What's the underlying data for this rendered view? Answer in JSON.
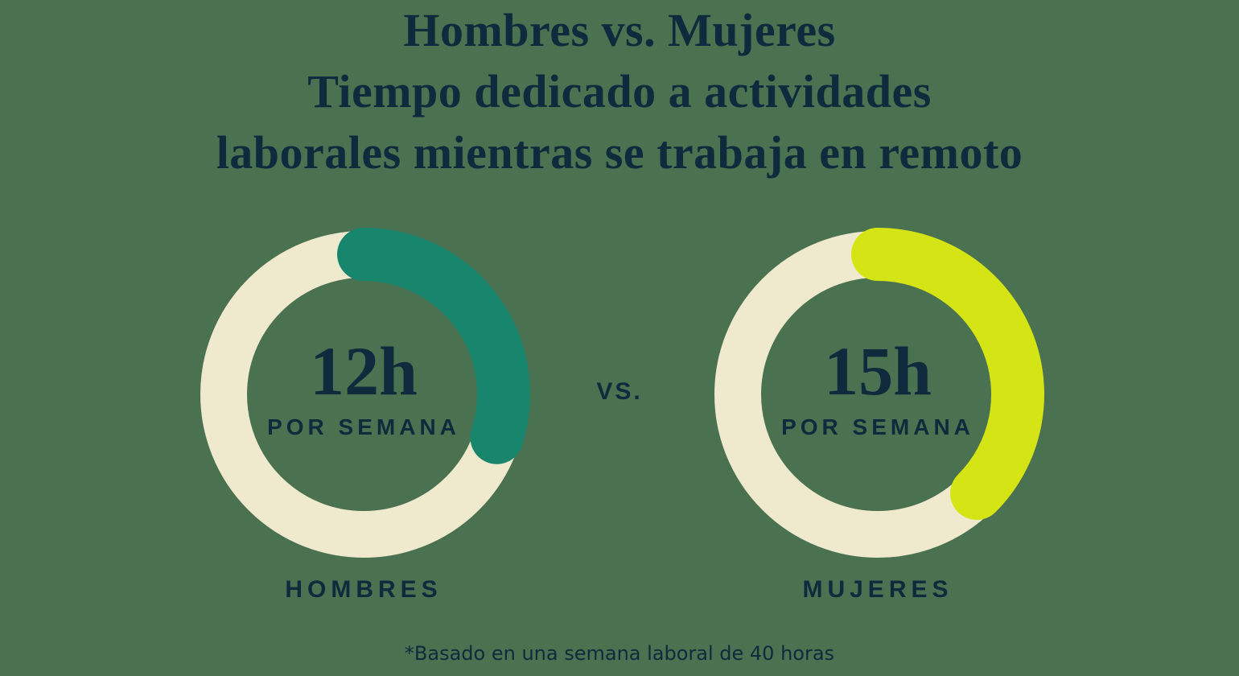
{
  "colors": {
    "background": "#4a7150",
    "navy": "#0e2a3c",
    "ring_cream": "#efeacd",
    "arc_men_teal": "#17866d",
    "arc_women_lime": "#d5e414"
  },
  "title": {
    "line1": "Hombres vs. Mujeres",
    "line2": "Tiempo dedicado a actividades",
    "line3": "laborales mientras se trabaja en remoto"
  },
  "vs_label": "vs.",
  "footnote": "*Basado en una semana laboral de 40 horas",
  "chart_data": {
    "type": "donut",
    "title": "Hombres vs. Mujeres — Tiempo dedicado a actividades laborales mientras se trabaja en remoto",
    "basis_total_hours": 40,
    "unit": "horas por semana",
    "legend_position": "below each donut",
    "series": [
      {
        "label": "HOMBRES",
        "value_hours": 12,
        "fraction_of_week": 0.3,
        "arc_degrees": 108,
        "display_value": "12h",
        "display_sublabel": "POR SEMANA",
        "arc_color": "#17866d",
        "ring_color": "#efeacd"
      },
      {
        "label": "MUJERES",
        "value_hours": 15,
        "fraction_of_week": 0.375,
        "arc_degrees": 135,
        "display_value": "15h",
        "display_sublabel": "POR SEMANA",
        "arc_color": "#d5e414",
        "ring_color": "#efeacd"
      }
    ],
    "footnote": "*Basado en una semana laboral de 40 horas"
  }
}
